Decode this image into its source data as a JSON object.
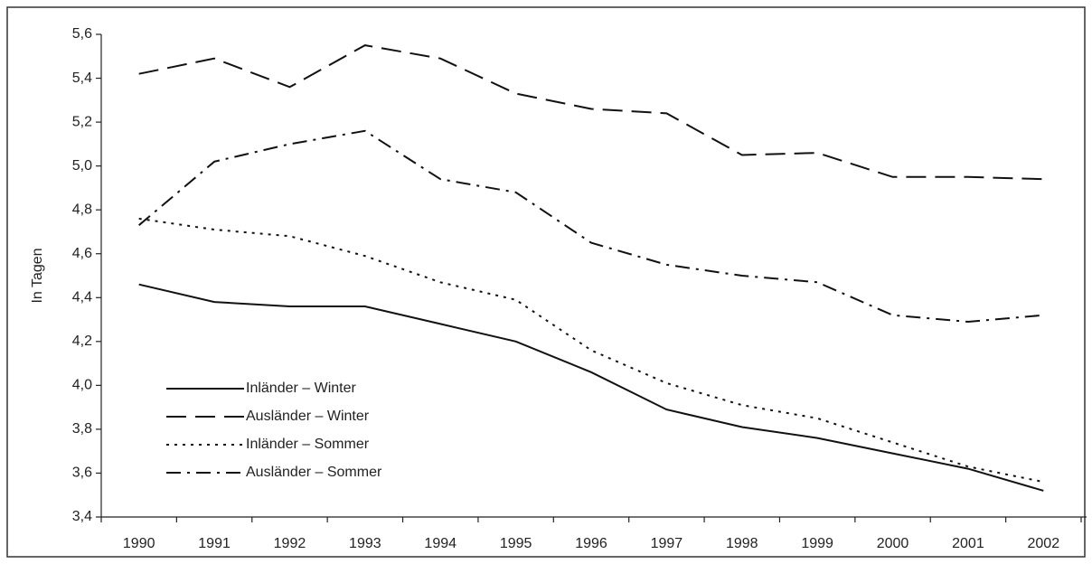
{
  "chart_data": {
    "type": "line",
    "y_label": "In Tagen",
    "categories": [
      "1990",
      "1991",
      "1992",
      "1993",
      "1994",
      "1995",
      "1996",
      "1997",
      "1998",
      "1999",
      "2000",
      "2001",
      "2002"
    ],
    "series": [
      {
        "name": "Inländer – Winter",
        "color": "#111111",
        "dash": "solid",
        "values": [
          4.46,
          4.38,
          4.36,
          4.36,
          4.28,
          4.2,
          4.06,
          3.89,
          3.81,
          3.76,
          3.69,
          3.62,
          3.52
        ]
      },
      {
        "name": "Ausländer – Winter",
        "color": "#111111",
        "dash": "dashed",
        "values": [
          5.42,
          5.49,
          5.36,
          5.55,
          5.49,
          5.33,
          5.26,
          5.24,
          5.05,
          5.06,
          4.95,
          4.95,
          4.94
        ]
      },
      {
        "name": "Inländer – Sommer",
        "color": "#111111",
        "dash": "dotted",
        "values": [
          4.76,
          4.71,
          4.68,
          4.59,
          4.47,
          4.39,
          4.16,
          4.01,
          3.91,
          3.85,
          3.74,
          3.63,
          3.56
        ]
      },
      {
        "name": "Ausländer – Sommer",
        "color": "#111111",
        "dash": "dashdot",
        "values": [
          4.73,
          5.02,
          5.1,
          5.16,
          4.94,
          4.88,
          4.65,
          4.55,
          4.5,
          4.47,
          4.32,
          4.29,
          4.32
        ]
      }
    ],
    "ylim": [
      3.4,
      5.6
    ],
    "yticks": [
      {
        "value": 3.4,
        "label": "3,4"
      },
      {
        "value": 3.6,
        "label": "3,6"
      },
      {
        "value": 3.8,
        "label": "3,8"
      },
      {
        "value": 4.0,
        "label": "4,0"
      },
      {
        "value": 4.2,
        "label": "4,2"
      },
      {
        "value": 4.4,
        "label": "4,4"
      },
      {
        "value": 4.6,
        "label": "4,6"
      },
      {
        "value": 4.8,
        "label": "4,8"
      },
      {
        "value": 5.0,
        "label": "5,0"
      },
      {
        "value": 5.2,
        "label": "5,2"
      },
      {
        "value": 5.4,
        "label": "5,4"
      },
      {
        "value": 5.6,
        "label": "5,6"
      }
    ],
    "grid": false,
    "legend": "lower left"
  }
}
